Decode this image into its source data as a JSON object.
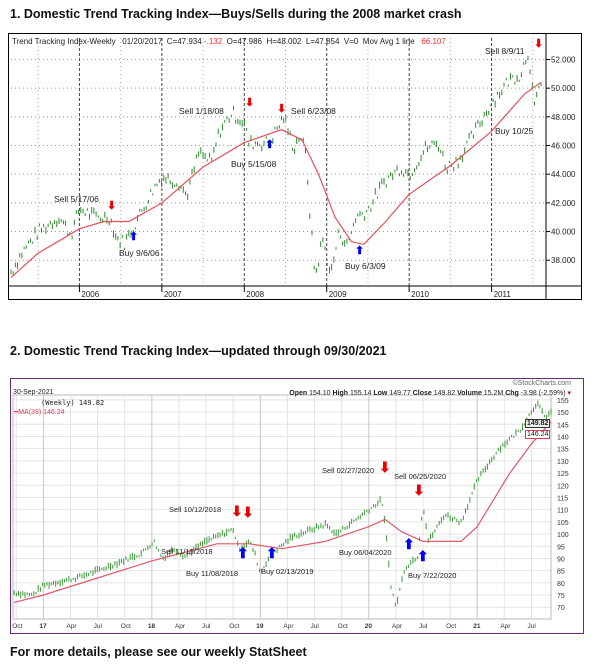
{
  "heading1": "1. Domestic Trend Tracking Index—Buys/Sells during the 2008 market crash",
  "heading2": "2. Domestic Trend Tracking Index—updated through 09/30/2021",
  "footer": "For more details, please see our weekly StatSheet",
  "chart_data": [
    {
      "type": "line",
      "title": "Trend Tracking Index-Weekly",
      "header": {
        "date": "01/20/2017",
        "c": "C=47.934",
        "chg": "-.132",
        "o": "O=47.986",
        "h": "H=48.002",
        "l": "L=47.854",
        "v": "V=0",
        "ma_label": "Mov Avg 1 line",
        "ma_value": "66.107"
      },
      "x_ticks": [
        "2006",
        "2007",
        "2008",
        "2009",
        "2010",
        "2011"
      ],
      "y_ticks": [
        "52.000",
        "50.000",
        "48.000",
        "46.000",
        "44.000",
        "42.000",
        "40.000",
        "38.000"
      ],
      "ylim": [
        36.2,
        53.5
      ],
      "xlim": [
        2005.17,
        2011.66
      ],
      "series": [
        {
          "name": "Index",
          "color": "#2e8b2e",
          "points": [
            [
              2005.17,
              37.2
            ],
            [
              2005.3,
              38.5
            ],
            [
              2005.5,
              40
            ],
            [
              2005.75,
              41
            ],
            [
              2005.9,
              39.8
            ],
            [
              2006.0,
              41.6
            ],
            [
              2006.2,
              41
            ],
            [
              2006.37,
              41
            ],
            [
              2006.45,
              39.5
            ],
            [
              2006.55,
              39.2
            ],
            [
              2006.65,
              40.3
            ],
            [
              2006.9,
              43
            ],
            [
              2007.0,
              43.8
            ],
            [
              2007.2,
              43.5
            ],
            [
              2007.3,
              42.5
            ],
            [
              2007.45,
              45.5
            ],
            [
              2007.6,
              44.8
            ],
            [
              2007.7,
              47
            ],
            [
              2007.85,
              48.3
            ],
            [
              2008.0,
              47.6
            ],
            [
              2008.05,
              46.2
            ],
            [
              2008.3,
              46.2
            ],
            [
              2008.48,
              48
            ],
            [
              2008.6,
              45.8
            ],
            [
              2008.68,
              46.8
            ],
            [
              2008.75,
              45.2
            ],
            [
              2008.8,
              41
            ],
            [
              2008.86,
              36.8
            ],
            [
              2008.95,
              39.5
            ],
            [
              2009.05,
              37
            ],
            [
              2009.15,
              40
            ],
            [
              2009.25,
              39
            ],
            [
              2009.35,
              41
            ],
            [
              2009.5,
              41.5
            ],
            [
              2009.7,
              43.5
            ],
            [
              2009.9,
              44.5
            ],
            [
              2010.0,
              44
            ],
            [
              2010.2,
              45.8
            ],
            [
              2010.35,
              46.2
            ],
            [
              2010.45,
              44.5
            ],
            [
              2010.6,
              45
            ],
            [
              2010.8,
              47
            ],
            [
              2011.0,
              49
            ],
            [
              2011.2,
              50.5
            ],
            [
              2011.35,
              51
            ],
            [
              2011.45,
              52.6
            ],
            [
              2011.52,
              48.5
            ],
            [
              2011.6,
              50.6
            ]
          ]
        },
        {
          "name": "Mov Avg",
          "color": "#e8505b",
          "points": [
            [
              2005.17,
              36.8
            ],
            [
              2005.5,
              38.5
            ],
            [
              2005.8,
              39.5
            ],
            [
              2006.0,
              40.2
            ],
            [
              2006.3,
              40.7
            ],
            [
              2006.6,
              40.7
            ],
            [
              2007.0,
              42
            ],
            [
              2007.5,
              44.5
            ],
            [
              2008.0,
              46.2
            ],
            [
              2008.45,
              47.1
            ],
            [
              2008.7,
              46.4
            ],
            [
              2008.9,
              44
            ],
            [
              2009.1,
              41
            ],
            [
              2009.3,
              39.3
            ],
            [
              2009.45,
              39.1
            ],
            [
              2009.7,
              40.6
            ],
            [
              2010.0,
              42.6
            ],
            [
              2010.5,
              44.6
            ],
            [
              2011.0,
              47
            ],
            [
              2011.4,
              49.6
            ],
            [
              2011.6,
              50.4
            ]
          ]
        }
      ],
      "annotations": [
        "Sell 5/17/06",
        "Buy 9/6/06",
        "Sell 1/18/08",
        "Buy 5/15/08",
        "Sell 6/23/08",
        "Buy 6/3/09",
        "Sell 8/9/11",
        "Buy 10/25"
      ]
    },
    {
      "type": "line",
      "date": "30-Sep-2021",
      "source": "©StockCharts.com",
      "header": {
        "open_label": "Open",
        "open": "154.10",
        "high_label": "High",
        "high": "155.14",
        "low_label": "Low",
        "low": "149.77",
        "close_label": "Close",
        "close": "149.82",
        "volume_label": "Volume",
        "volume": "15.2M",
        "chg_label": "Chg",
        "chg": "-3.98 (-2.59%)"
      },
      "legend": {
        "price": "(Weekly) 149.82",
        "ma": "MA(39) 146.24"
      },
      "last_price_tag": "149.82",
      "last_ma_tag": "146.24",
      "y_ticks": [
        "155",
        "150",
        "145",
        "140",
        "135",
        "130",
        "125",
        "120",
        "115",
        "110",
        "105",
        "100",
        "95",
        "90",
        "85",
        "80",
        "75",
        "70"
      ],
      "x_ticks": [
        [
          "Oct",
          2016.75
        ],
        [
          "17",
          2017
        ],
        [
          "Apr",
          2017.25
        ],
        [
          "Jul",
          2017.5
        ],
        [
          "Oct",
          2017.75
        ],
        [
          "18",
          2018
        ],
        [
          "Apr",
          2018.25
        ],
        [
          "Jul",
          2018.5
        ],
        [
          "Oct",
          2018.75
        ],
        [
          "19",
          2019
        ],
        [
          "Apr",
          2019.25
        ],
        [
          "Jul",
          2019.5
        ],
        [
          "Oct",
          2019.75
        ],
        [
          "20",
          2020
        ],
        [
          "Apr",
          2020.25
        ],
        [
          "Jul",
          2020.5
        ],
        [
          "Oct",
          2020.75
        ],
        [
          "21",
          2021
        ],
        [
          "Apr",
          2021.25
        ],
        [
          "Jul",
          2021.5
        ]
      ],
      "ylim": [
        66,
        157
      ],
      "xlim": [
        2016.72,
        2021.68
      ],
      "series": [
        {
          "name": "Weekly",
          "color": "#3a9a3a",
          "points": [
            [
              2016.73,
              76
            ],
            [
              2016.9,
              75
            ],
            [
              2017.0,
              79
            ],
            [
              2017.3,
              82
            ],
            [
              2017.5,
              85
            ],
            [
              2017.9,
              92
            ],
            [
              2018.02,
              97
            ],
            [
              2018.1,
              90
            ],
            [
              2018.2,
              94
            ],
            [
              2018.3,
              91
            ],
            [
              2018.5,
              97
            ],
            [
              2018.75,
              102
            ],
            [
              2018.8,
              94
            ],
            [
              2018.9,
              97
            ],
            [
              2018.95,
              92
            ],
            [
              2019.0,
              84
            ],
            [
              2019.1,
              92
            ],
            [
              2019.3,
              99
            ],
            [
              2019.6,
              104
            ],
            [
              2019.7,
              100
            ],
            [
              2019.85,
              105
            ],
            [
              2020.0,
              110
            ],
            [
              2020.12,
              114
            ],
            [
              2020.16,
              100
            ],
            [
              2020.2,
              80
            ],
            [
              2020.25,
              70
            ],
            [
              2020.33,
              86
            ],
            [
              2020.45,
              91
            ],
            [
              2020.5,
              112
            ],
            [
              2020.55,
              97
            ],
            [
              2020.7,
              108
            ],
            [
              2020.85,
              105
            ],
            [
              2020.95,
              116
            ],
            [
              2021.0,
              122
            ],
            [
              2021.2,
              135
            ],
            [
              2021.4,
              143
            ],
            [
              2021.55,
              154
            ],
            [
              2021.62,
              148
            ],
            [
              2021.68,
              150
            ]
          ]
        },
        {
          "name": "MA(39)",
          "color": "#e05a6a",
          "points": [
            [
              2016.73,
              72
            ],
            [
              2017.0,
              75
            ],
            [
              2017.5,
              82
            ],
            [
              2018.0,
              89
            ],
            [
              2018.6,
              96
            ],
            [
              2018.9,
              96
            ],
            [
              2019.2,
              94
            ],
            [
              2019.6,
              97
            ],
            [
              2020.0,
              103
            ],
            [
              2020.15,
              106
            ],
            [
              2020.3,
              101
            ],
            [
              2020.5,
              97
            ],
            [
              2020.85,
              97
            ],
            [
              2021.0,
              103
            ],
            [
              2021.3,
              125
            ],
            [
              2021.5,
              137
            ],
            [
              2021.68,
              146
            ]
          ]
        }
      ],
      "annotations": [
        "Sell 10/12/2018",
        "Sell 11/15/2018",
        "Buy 11/08/2018",
        "Buy 02/13/2019",
        "Sell 02/27/2020",
        "Buy 06/04/2020",
        "Sell 06/25/2020",
        "Buy 7/22/2020"
      ]
    }
  ]
}
